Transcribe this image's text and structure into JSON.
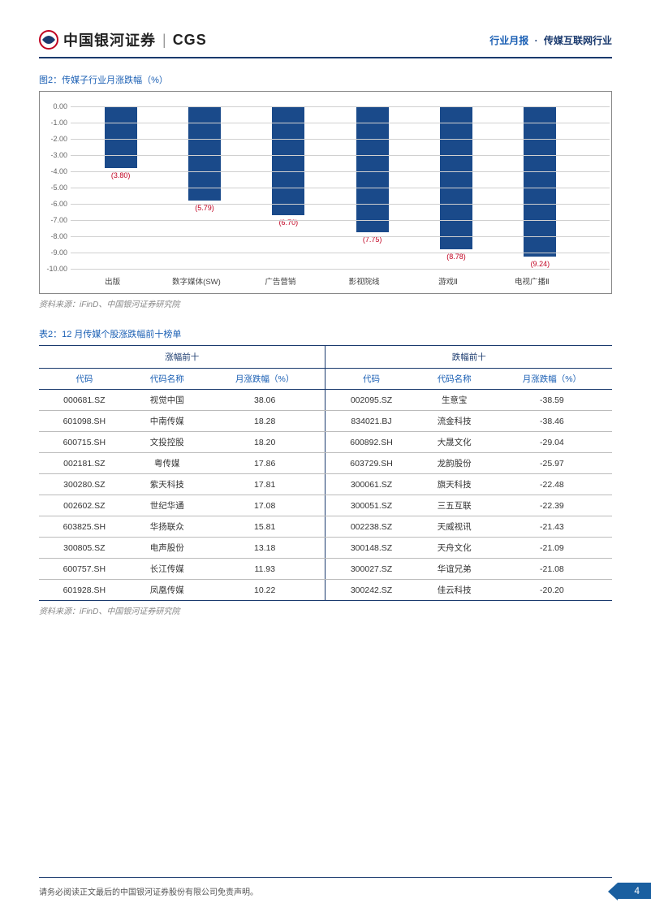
{
  "header": {
    "logo_text": "中国银河证券",
    "logo_cgs": "CGS",
    "right_blue": "行业月报",
    "right_dark": "传媒互联网行业"
  },
  "chart": {
    "caption": "图2：传媒子行业月涨跌幅（%）",
    "type": "bar",
    "categories": [
      "出版",
      "数字媒体(SW)",
      "广告营销",
      "影视院线",
      "游戏Ⅱ",
      "电视广播Ⅱ"
    ],
    "values": [
      -3.8,
      -5.79,
      -6.7,
      -7.75,
      -8.78,
      -9.24
    ],
    "value_labels": [
      "(3.80)",
      "(5.79)",
      "(6.70)",
      "(7.75)",
      "(8.78)",
      "(9.24)"
    ],
    "bar_color": "#1a4a8a",
    "label_color": "#c00020",
    "grid_color": "#d0d0d0",
    "ylim": [
      -10,
      0
    ],
    "ytick_step": 1,
    "yticks": [
      "0.00",
      "-1.00",
      "-2.00",
      "-3.00",
      "-4.00",
      "-5.00",
      "-6.00",
      "-7.00",
      "-8.00",
      "-9.00",
      "-10.00"
    ],
    "source": "资料来源：iFinD、中国银河证券研究院"
  },
  "table": {
    "caption": "表2：12 月传媒个股涨跌幅前十榜单",
    "group_headers": [
      "涨幅前十",
      "跌幅前十"
    ],
    "sub_headers": [
      "代码",
      "代码名称",
      "月涨跌幅（%）",
      "代码",
      "代码名称",
      "月涨跌幅（%）"
    ],
    "rows": [
      [
        "000681.SZ",
        "视觉中国",
        "38.06",
        "002095.SZ",
        "生意宝",
        "-38.59"
      ],
      [
        "601098.SH",
        "中南传媒",
        "18.28",
        "834021.BJ",
        "流金科技",
        "-38.46"
      ],
      [
        "600715.SH",
        "文投控股",
        "18.20",
        "600892.SH",
        "大晟文化",
        "-29.04"
      ],
      [
        "002181.SZ",
        "粤传媒",
        "17.86",
        "603729.SH",
        "龙韵股份",
        "-25.97"
      ],
      [
        "300280.SZ",
        "紫天科技",
        "17.81",
        "300061.SZ",
        "旗天科技",
        "-22.48"
      ],
      [
        "002602.SZ",
        "世纪华通",
        "17.08",
        "300051.SZ",
        "三五互联",
        "-22.39"
      ],
      [
        "603825.SH",
        "华扬联众",
        "15.81",
        "002238.SZ",
        "天威视讯",
        "-21.43"
      ],
      [
        "300805.SZ",
        "电声股份",
        "13.18",
        "300148.SZ",
        "天舟文化",
        "-21.09"
      ],
      [
        "600757.SH",
        "长江传媒",
        "11.93",
        "300027.SZ",
        "华谊兄弟",
        "-21.08"
      ],
      [
        "601928.SH",
        "凤凰传媒",
        "10.22",
        "300242.SZ",
        "佳云科技",
        "-20.20"
      ]
    ],
    "source": "资料来源：iFinD、中国银河证券研究院"
  },
  "footer": {
    "disclaimer": "请务必阅读正文最后的中国银河证券股份有限公司免责声明。",
    "page": "4"
  }
}
